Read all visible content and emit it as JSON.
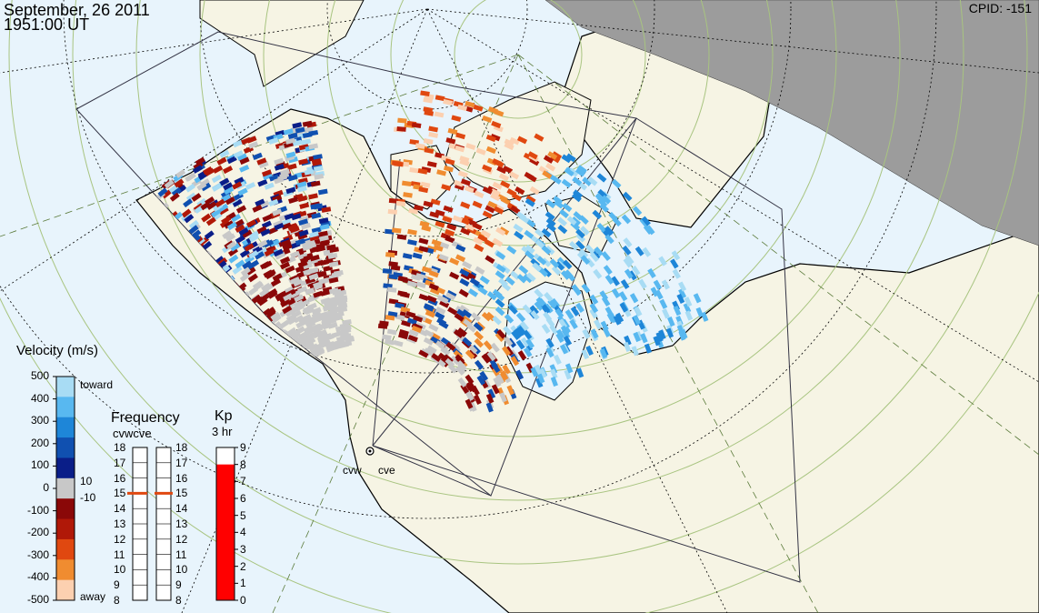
{
  "header": {
    "date": "September, 26 2011",
    "time": "1951:00 UT",
    "cpid": "CPID:  -151"
  },
  "velocity_legend": {
    "title": "Velocity (m/s)",
    "ticks": [
      "500",
      "400",
      "300",
      "200",
      "100",
      "0",
      "-100",
      "-200",
      "-300",
      "-400",
      "-500"
    ],
    "toward_label": "toward",
    "away_label": "away",
    "threshold_pos": "10",
    "threshold_neg": "-10",
    "colors": [
      "#a8dcf4",
      "#58b8f0",
      "#1e86d8",
      "#1050b0",
      "#0a1e88",
      "#c8c8c8",
      "#8a0808",
      "#b01808",
      "#e04810",
      "#f08c30",
      "#fcd0b0"
    ]
  },
  "frequency_legend": {
    "title": "Frequency",
    "subtitle": "cvwcve",
    "ticks": [
      "18",
      "17",
      "16",
      "15",
      "14",
      "13",
      "12",
      "11",
      "10",
      "9",
      "8"
    ],
    "cvw_value": 15,
    "cve_value": 15
  },
  "kp_legend": {
    "title": "Kp",
    "subtitle": "3 hr",
    "ticks": [
      "9",
      "8",
      "7",
      "6",
      "5",
      "4",
      "3",
      "2",
      "1",
      "0"
    ],
    "value": 8,
    "color": "#ff0000"
  },
  "map": {
    "ocean_color": "#e8f4fc",
    "land_color": "#f6f4e4",
    "night_color": "#9c9c9c",
    "stations": [
      "cvw",
      "cve"
    ]
  }
}
